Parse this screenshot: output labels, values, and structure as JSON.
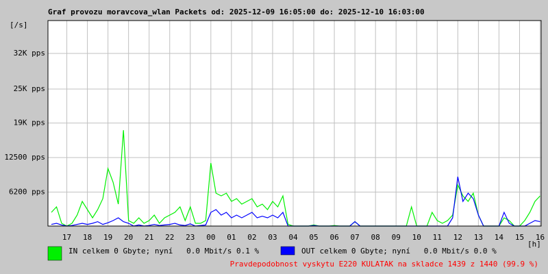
{
  "chart_data": {
    "type": "line",
    "title": "Graf provozu moravcova_wlan Packets od: 2025-12-09 16:05:00 do: 2025-12-10 16:03:00",
    "y_label": "[/s]",
    "x_label": "[h]",
    "footer": "Pravdepodobnost vyskytu E220 KULATAK na skladce 1439 z 1440 (99.9 %)",
    "grid": true,
    "xlim": [
      16.083,
      40.05
    ],
    "ylim": [
      0,
      37500
    ],
    "xticks": [
      {
        "value": 17,
        "label": "17"
      },
      {
        "value": 18,
        "label": "18"
      },
      {
        "value": 19,
        "label": "19"
      },
      {
        "value": 20,
        "label": "20"
      },
      {
        "value": 21,
        "label": "21"
      },
      {
        "value": 22,
        "label": "22"
      },
      {
        "value": 23,
        "label": "23"
      },
      {
        "value": 24,
        "label": "00"
      },
      {
        "value": 25,
        "label": "01"
      },
      {
        "value": 26,
        "label": "02"
      },
      {
        "value": 27,
        "label": "03"
      },
      {
        "value": 28,
        "label": "04"
      },
      {
        "value": 29,
        "label": "05"
      },
      {
        "value": 30,
        "label": "06"
      },
      {
        "value": 31,
        "label": "07"
      },
      {
        "value": 32,
        "label": "08"
      },
      {
        "value": 33,
        "label": "09"
      },
      {
        "value": 34,
        "label": "10"
      },
      {
        "value": 35,
        "label": "11"
      },
      {
        "value": 36,
        "label": "12"
      },
      {
        "value": 37,
        "label": "13"
      },
      {
        "value": 38,
        "label": "14"
      },
      {
        "value": 39,
        "label": "15"
      },
      {
        "value": 40,
        "label": "16"
      }
    ],
    "yticks": [
      {
        "value": 6200,
        "label": "6200 pps"
      },
      {
        "value": 12500,
        "label": "12500 pps"
      },
      {
        "value": 18800,
        "label": "19K pps"
      },
      {
        "value": 25000,
        "label": "25K pps"
      },
      {
        "value": 31500,
        "label": "32K pps"
      }
    ],
    "x": [
      16.25,
      16.5,
      16.75,
      17,
      17.25,
      17.5,
      17.75,
      18,
      18.25,
      18.5,
      18.75,
      19,
      19.25,
      19.5,
      19.75,
      20,
      20.25,
      20.5,
      20.75,
      21,
      21.25,
      21.5,
      21.75,
      22,
      22.25,
      22.5,
      22.75,
      23,
      23.25,
      23.5,
      23.75,
      24,
      24.25,
      24.5,
      24.75,
      25,
      25.25,
      25.5,
      25.75,
      26,
      26.25,
      26.5,
      26.75,
      27,
      27.25,
      27.5,
      27.75,
      28,
      28.25,
      28.5,
      28.75,
      29,
      29.25,
      29.5,
      29.75,
      30,
      30.25,
      30.5,
      30.75,
      31,
      31.25,
      31.5,
      31.75,
      32,
      32.25,
      32.5,
      32.75,
      33,
      33.25,
      33.5,
      33.75,
      34,
      34.25,
      34.5,
      34.75,
      35,
      35.25,
      35.5,
      35.75,
      36,
      36.25,
      36.5,
      36.75,
      37,
      37.25,
      37.5,
      37.75,
      38,
      38.25,
      38.5,
      38.75,
      39,
      39.25,
      39.5,
      39.75,
      40
    ],
    "series": [
      {
        "name": "IN celkem 0 Gbyte; nyní   0.0 Mbit/s 0.1 %",
        "color": "#00f000",
        "values": [
          2500,
          3500,
          500,
          0,
          500,
          2000,
          4500,
          3000,
          1500,
          3000,
          5000,
          10500,
          8000,
          4000,
          17500,
          1000,
          500,
          1500,
          500,
          1000,
          2000,
          500,
          1500,
          2000,
          2500,
          3500,
          1000,
          3500,
          500,
          500,
          1000,
          11500,
          6000,
          5500,
          6000,
          4500,
          5000,
          4000,
          4500,
          5000,
          3500,
          4000,
          3000,
          4500,
          3500,
          5500,
          300,
          0,
          0,
          0,
          0,
          200,
          0,
          0,
          0,
          100,
          0,
          0,
          0,
          800,
          0,
          0,
          0,
          0,
          0,
          0,
          0,
          0,
          0,
          0,
          3500,
          0,
          0,
          0,
          2500,
          1000,
          500,
          1000,
          2000,
          7500,
          5500,
          4500,
          6000,
          2000,
          0,
          0,
          0,
          0,
          1500,
          1000,
          0,
          0,
          1000,
          2500,
          4500,
          5500
        ]
      },
      {
        "name": "OUT celkem 0 Gbyte; nyní   0.0 Mbit/s 0.0 %",
        "color": "#0000ff",
        "values": [
          300,
          500,
          200,
          0,
          100,
          300,
          500,
          300,
          500,
          800,
          300,
          600,
          1000,
          1500,
          800,
          500,
          0,
          200,
          0,
          100,
          300,
          100,
          200,
          300,
          500,
          200,
          100,
          400,
          0,
          100,
          200,
          2500,
          3000,
          2000,
          2500,
          1500,
          2000,
          1500,
          2000,
          2500,
          1500,
          1800,
          1500,
          2000,
          1500,
          2500,
          0,
          0,
          0,
          0,
          0,
          100,
          0,
          0,
          0,
          0,
          0,
          0,
          0,
          800,
          0,
          0,
          0,
          0,
          0,
          0,
          0,
          0,
          0,
          0,
          0,
          0,
          0,
          0,
          0,
          0,
          0,
          0,
          1500,
          9000,
          4500,
          6000,
          5000,
          2000,
          0,
          0,
          0,
          0,
          2500,
          500,
          0,
          0,
          0,
          500,
          1000,
          800
        ]
      }
    ]
  }
}
